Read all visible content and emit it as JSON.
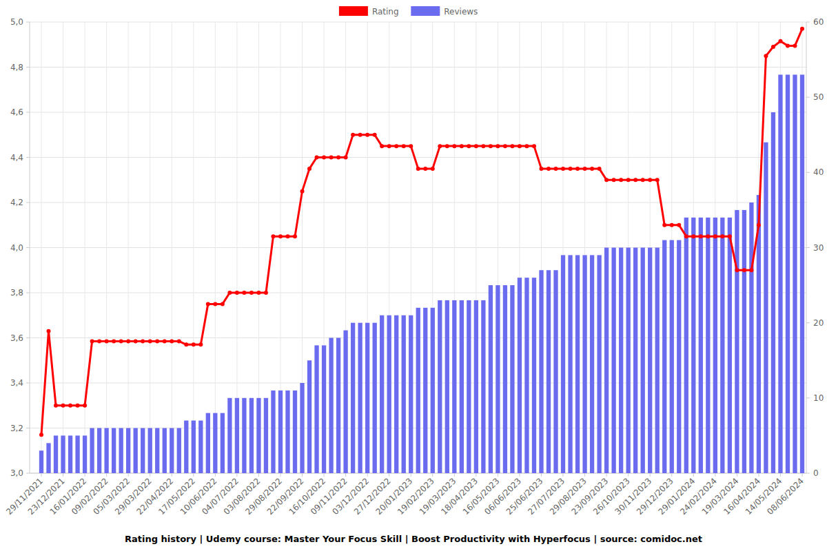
{
  "chart_data": {
    "type": "bar",
    "title": "Rating history | Udemy course: Master Your Focus Skill | Boost Productivity with Hyperfocus | source: comidoc.net",
    "categories": [
      "29/11/2021",
      null,
      null,
      "23/12/2021",
      null,
      null,
      "16/01/2022",
      null,
      null,
      "09/02/2022",
      null,
      null,
      "05/03/2022",
      null,
      null,
      "29/03/2022",
      null,
      null,
      "22/04/2022",
      null,
      null,
      "17/05/2022",
      null,
      null,
      "10/06/2022",
      null,
      null,
      "04/07/2022",
      null,
      null,
      "03/08/2022",
      null,
      null,
      "29/08/2022",
      null,
      null,
      "22/09/2022",
      null,
      null,
      "16/10/2022",
      null,
      null,
      "09/11/2022",
      null,
      null,
      "03/12/2022",
      null,
      null,
      "27/12/2022",
      null,
      null,
      "20/01/2023",
      null,
      null,
      "19/02/2023",
      null,
      null,
      "19/03/2023",
      null,
      null,
      "18/04/2023",
      null,
      null,
      "16/05/2023",
      null,
      null,
      "06/06/2023",
      null,
      null,
      "25/06/2023",
      null,
      null,
      "27/07/2023",
      null,
      null,
      "29/08/2023",
      null,
      null,
      "23/09/2023",
      null,
      null,
      "26/10/2023",
      null,
      null,
      "30/11/2023",
      null,
      null,
      "29/12/2023",
      null,
      null,
      "29/01/2024",
      null,
      null,
      "24/02/2024",
      null,
      null,
      "19/03/2024",
      null,
      null,
      "16/04/2024",
      null,
      null,
      "14/05/2024",
      null,
      null,
      "08/06/2024"
    ],
    "series": [
      {
        "name": "Rating",
        "type": "line",
        "color": "#ff0000",
        "marker": "circle",
        "line_style": "solid",
        "values": [
          3.17,
          3.63,
          3.3,
          3.3,
          3.3,
          3.3,
          3.3,
          3.585,
          3.585,
          3.585,
          3.585,
          3.585,
          3.585,
          3.585,
          3.585,
          3.585,
          3.585,
          3.585,
          3.585,
          3.585,
          3.57,
          3.57,
          3.57,
          3.75,
          3.75,
          3.75,
          3.8,
          3.8,
          3.8,
          3.8,
          3.8,
          3.8,
          4.05,
          4.05,
          4.05,
          4.05,
          4.25,
          4.35,
          4.4,
          4.4,
          4.4,
          4.4,
          4.4,
          4.5,
          4.5,
          4.5,
          4.5,
          4.45,
          4.45,
          4.45,
          4.45,
          4.45,
          4.35,
          4.35,
          4.35,
          4.45,
          4.45,
          4.45,
          4.45,
          4.45,
          4.45,
          4.45,
          4.45,
          4.45,
          4.45,
          4.45,
          4.45,
          4.45,
          4.45,
          4.35,
          4.35,
          4.35,
          4.35,
          4.35,
          4.35,
          4.35,
          4.35,
          4.35,
          4.3,
          4.3,
          4.3,
          4.3,
          4.3,
          4.3,
          4.3,
          4.3,
          4.1,
          4.1,
          4.1,
          4.05,
          4.05,
          4.05,
          4.05,
          4.05,
          4.05,
          4.05,
          3.9,
          3.9,
          3.9,
          4.1,
          4.85,
          4.89,
          4.915,
          4.895,
          4.895,
          4.97
        ]
      },
      {
        "name": "Reviews",
        "type": "bar",
        "color": "#6b6bf0",
        "axis": "y2",
        "values": [
          3,
          4,
          5,
          5,
          5,
          5,
          5,
          6,
          6,
          6,
          6,
          6,
          6,
          6,
          6,
          6,
          6,
          6,
          6,
          6,
          7,
          7,
          7,
          8,
          8,
          8,
          10,
          10,
          10,
          10,
          10,
          10,
          11,
          11,
          11,
          11,
          12,
          15,
          17,
          17,
          18,
          18,
          19,
          20,
          20,
          20,
          20,
          21,
          21,
          21,
          21,
          21,
          22,
          22,
          22,
          23,
          23,
          23,
          23,
          23,
          23,
          23,
          25,
          25,
          25,
          25,
          26,
          26,
          26,
          27,
          27,
          27,
          29,
          29,
          29,
          29,
          29,
          29,
          30,
          30,
          30,
          30,
          30,
          30,
          30,
          30,
          31,
          31,
          31,
          34,
          34,
          34,
          34,
          34,
          34,
          34,
          35,
          35,
          36,
          37,
          44,
          48,
          53,
          53,
          53,
          53
        ]
      }
    ],
    "ylim": [
      3,
      5
    ],
    "yticks": [
      {
        "value": 3,
        "label": "3,0"
      },
      {
        "value": 3.2,
        "label": "3,2"
      },
      {
        "value": 3.4,
        "label": "3,4"
      },
      {
        "value": 3.6,
        "label": "3,6"
      },
      {
        "value": 3.8,
        "label": "3,8"
      },
      {
        "value": 4,
        "label": "4,0"
      },
      {
        "value": 4.2,
        "label": "4,2"
      },
      {
        "value": 4.4,
        "label": "4,4"
      },
      {
        "value": 4.6,
        "label": "4,6"
      },
      {
        "value": 4.8,
        "label": "4,8"
      },
      {
        "value": 5,
        "label": "5,0"
      }
    ],
    "y2lim": [
      0,
      60
    ],
    "y2ticks": [
      0,
      10,
      20,
      30,
      40,
      50,
      60
    ],
    "grid": true,
    "legend": "top"
  }
}
